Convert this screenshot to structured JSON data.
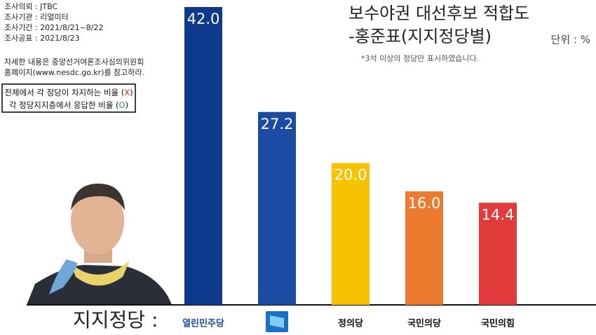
{
  "chart_data": {
    "type": "bar",
    "title": [
      "보수야권 대선후보 적합도",
      "-홍준표(지지정당별)"
    ],
    "unit": "단위 : %",
    "note": "*3석 이상의 정당만 표시하였습니다.",
    "info": [
      "조사의뢰 : JTBC",
      "조사기관 : 리얼미터",
      "조사기간 : 2021/8/21~8/22",
      "조사공표 : 2021/8/23"
    ],
    "reference": [
      "자세한 내용은 중앙선거여론조사심의위원회",
      "홈페이지(www.nesdc.go.kr)를 참고하라."
    ],
    "legend_box": [
      [
        "전체에서 각 정당이 차지하는 비율 (",
        "X",
        ")"
      ],
      [
        "각 정당지지층에서 응답한 비율 (",
        "O",
        ")"
      ]
    ],
    "axis_label": "지지정당 :",
    "categories": [
      "열린민주당",
      null,
      "정의당",
      "국민의당",
      "국민의힘"
    ],
    "values": [
      42.0,
      27.2,
      20.0,
      16.0,
      14.4
    ],
    "value_labels": [
      "42.0",
      "27.2",
      "20.0",
      "16.0",
      "14.4"
    ],
    "colors": [
      "#0d3a8c",
      "#1b4ba3",
      "#f7c200",
      "#ec7a2f",
      "#e23b3b"
    ],
    "ylim": [
      0,
      42
    ]
  }
}
